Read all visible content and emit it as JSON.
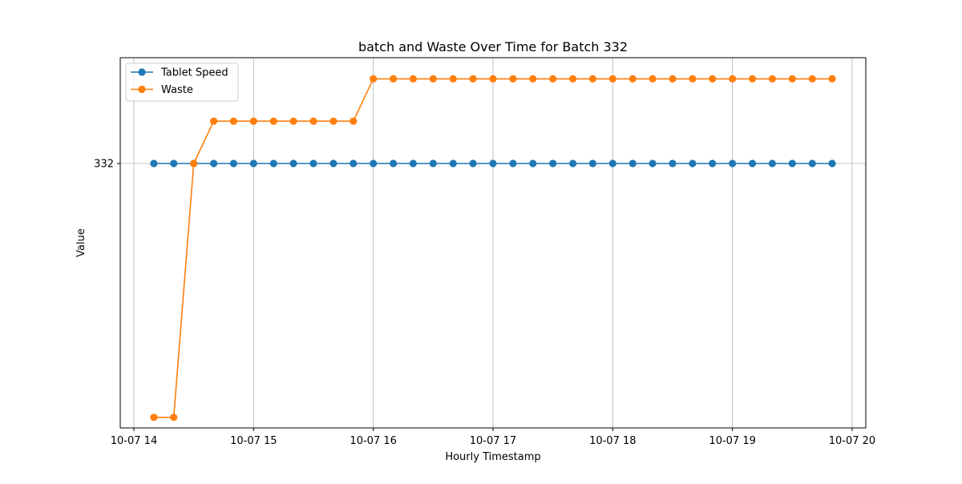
{
  "chart_data": {
    "type": "line",
    "title": "batch and Waste Over Time for Batch 332",
    "xlabel": "Hourly Timestamp",
    "ylabel": "Value",
    "x_tick_labels": [
      "10-07 14",
      "10-07 15",
      "10-07 16",
      "10-07 17",
      "10-07 18",
      "10-07 19",
      "10-07 20"
    ],
    "x_tick_hours": [
      14,
      15,
      16,
      17,
      18,
      19,
      20
    ],
    "y_tick_labels": [
      "332"
    ],
    "y_tick_values": [
      332
    ],
    "ylim": [
      331.95,
      332.02
    ],
    "grid": true,
    "legend_position": "top-left",
    "x_hours": [
      14.167,
      14.333,
      14.5,
      14.667,
      14.833,
      15.0,
      15.167,
      15.333,
      15.5,
      15.667,
      15.833,
      16.0,
      16.167,
      16.333,
      16.5,
      16.667,
      16.833,
      17.0,
      17.167,
      17.333,
      17.5,
      17.667,
      17.833,
      18.0,
      18.167,
      18.333,
      18.5,
      18.667,
      18.833,
      19.0,
      19.167,
      19.333,
      19.5,
      19.667,
      19.833
    ],
    "series": [
      {
        "name": "Tablet Speed",
        "color": "#1f77b4",
        "values": [
          332,
          332,
          332,
          332,
          332,
          332,
          332,
          332,
          332,
          332,
          332,
          332,
          332,
          332,
          332,
          332,
          332,
          332,
          332,
          332,
          332,
          332,
          332,
          332,
          332,
          332,
          332,
          332,
          332,
          332,
          332,
          332,
          332,
          332,
          332
        ]
      },
      {
        "name": "Waste",
        "color": "#ff7f0e",
        "values": [
          331.952,
          331.952,
          332.0,
          332.008,
          332.008,
          332.008,
          332.008,
          332.008,
          332.008,
          332.008,
          332.008,
          332.016,
          332.016,
          332.016,
          332.016,
          332.016,
          332.016,
          332.016,
          332.016,
          332.016,
          332.016,
          332.016,
          332.016,
          332.016,
          332.016,
          332.016,
          332.016,
          332.016,
          332.016,
          332.016,
          332.016,
          332.016,
          332.016,
          332.016,
          332.016
        ]
      }
    ]
  }
}
